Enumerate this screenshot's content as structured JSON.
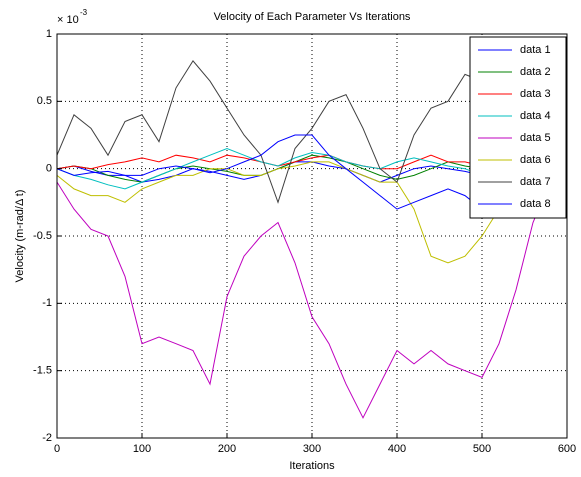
{
  "chart_data": {
    "type": "line",
    "title": "Velocity of Each Parameter Vs Iterations",
    "x_label": "Iterations",
    "y_label": "Velocity (m-rad/Δ t)",
    "y_exponent_base": "× 10",
    "y_exponent": "-3",
    "x": [
      0,
      20,
      40,
      60,
      80,
      100,
      120,
      140,
      160,
      180,
      200,
      220,
      240,
      260,
      280,
      300,
      320,
      340,
      360,
      380,
      400,
      420,
      440,
      460,
      480,
      500,
      520,
      540,
      560,
      580
    ],
    "xlim": [
      0,
      600
    ],
    "xticks": [
      0,
      100,
      200,
      300,
      400,
      500,
      600
    ],
    "ylim": [
      -2,
      1
    ],
    "yticks": [
      -2,
      -1.5,
      -1,
      -0.5,
      0,
      0.5,
      1
    ],
    "grid": true,
    "legend": "northeast",
    "series": [
      {
        "name": "data 1",
        "color": "#0000ff",
        "values": [
          0,
          0.02,
          -0.02,
          -0.05,
          -0.05,
          -0.1,
          -0.08,
          -0.05,
          0,
          -0.02,
          -0.05,
          -0.08,
          -0.05,
          0,
          0.05,
          0.05,
          0.02,
          0,
          -0.05,
          -0.1,
          -0.05,
          0,
          0.02,
          0,
          -0.02,
          -0.05,
          -0.03,
          0,
          0,
          0
        ]
      },
      {
        "name": "data 2",
        "color": "#008000",
        "values": [
          0,
          0.02,
          0,
          -0.05,
          -0.08,
          -0.1,
          -0.05,
          0,
          0.02,
          0,
          -0.02,
          -0.05,
          -0.05,
          0,
          0.05,
          0.1,
          0.08,
          0.05,
          0,
          -0.05,
          -0.08,
          -0.05,
          0,
          0.05,
          0.02,
          0,
          -0.02,
          0,
          0.02,
          0
        ]
      },
      {
        "name": "data 3",
        "color": "#ff0000",
        "values": [
          0,
          0.02,
          0,
          0.03,
          0.05,
          0.08,
          0.05,
          0.1,
          0.08,
          0.05,
          0.1,
          0.08,
          0.05,
          0.02,
          0.05,
          0.08,
          0.1,
          0.05,
          0.02,
          0,
          0,
          0.05,
          0.1,
          0.05,
          0.05,
          0.02,
          0,
          0.02,
          0,
          0
        ]
      },
      {
        "name": "data 4",
        "color": "#00bfbf",
        "values": [
          0,
          -0.05,
          -0.08,
          -0.12,
          -0.15,
          -0.1,
          -0.05,
          0,
          0.05,
          0.1,
          0.15,
          0.1,
          0.05,
          0.02,
          0.08,
          0.12,
          0.1,
          0.05,
          0.02,
          0,
          0.05,
          0.08,
          0.05,
          0.02,
          0,
          -0.05,
          -0.02,
          0,
          0,
          0
        ]
      },
      {
        "name": "data 5",
        "color": "#bf00bf",
        "values": [
          -0.1,
          -0.3,
          -0.45,
          -0.5,
          -0.8,
          -1.3,
          -1.25,
          -1.3,
          -1.35,
          -1.6,
          -0.95,
          -0.65,
          -0.5,
          -0.4,
          -0.7,
          -1.1,
          -1.3,
          -1.6,
          -1.85,
          -1.6,
          -1.35,
          -1.45,
          -1.35,
          -1.45,
          -1.5,
          -1.55,
          -1.3,
          -0.9,
          -0.4,
          -0.1
        ]
      },
      {
        "name": "data 6",
        "color": "#bfbf00",
        "values": [
          -0.05,
          -0.15,
          -0.2,
          -0.2,
          -0.25,
          -0.15,
          -0.1,
          -0.05,
          -0.05,
          0,
          0,
          -0.05,
          -0.05,
          0,
          0.02,
          0.05,
          0.05,
          0,
          -0.05,
          -0.1,
          -0.1,
          -0.3,
          -0.65,
          -0.7,
          -0.65,
          -0.5,
          -0.3,
          -0.1,
          0,
          0
        ]
      },
      {
        "name": "data 7",
        "color": "#404040",
        "values": [
          0.1,
          0.4,
          0.3,
          0.1,
          0.35,
          0.4,
          0.2,
          0.6,
          0.8,
          0.65,
          0.45,
          0.25,
          0.1,
          -0.25,
          0.15,
          0.3,
          0.5,
          0.55,
          0.3,
          0,
          -0.1,
          0.25,
          0.45,
          0.5,
          0.7,
          0.65,
          0.5,
          0.35,
          0.15,
          0
        ]
      },
      {
        "name": "data 8",
        "color": "#0000ff",
        "values": [
          0,
          -0.05,
          -0.03,
          -0.02,
          -0.05,
          -0.05,
          0,
          0.02,
          0,
          -0.03,
          0,
          0.05,
          0.1,
          0.2,
          0.25,
          0.25,
          0.1,
          0,
          -0.1,
          -0.2,
          -0.3,
          -0.25,
          -0.2,
          -0.15,
          -0.2,
          -0.3,
          -0.2,
          -0.1,
          0,
          0
        ]
      }
    ]
  }
}
